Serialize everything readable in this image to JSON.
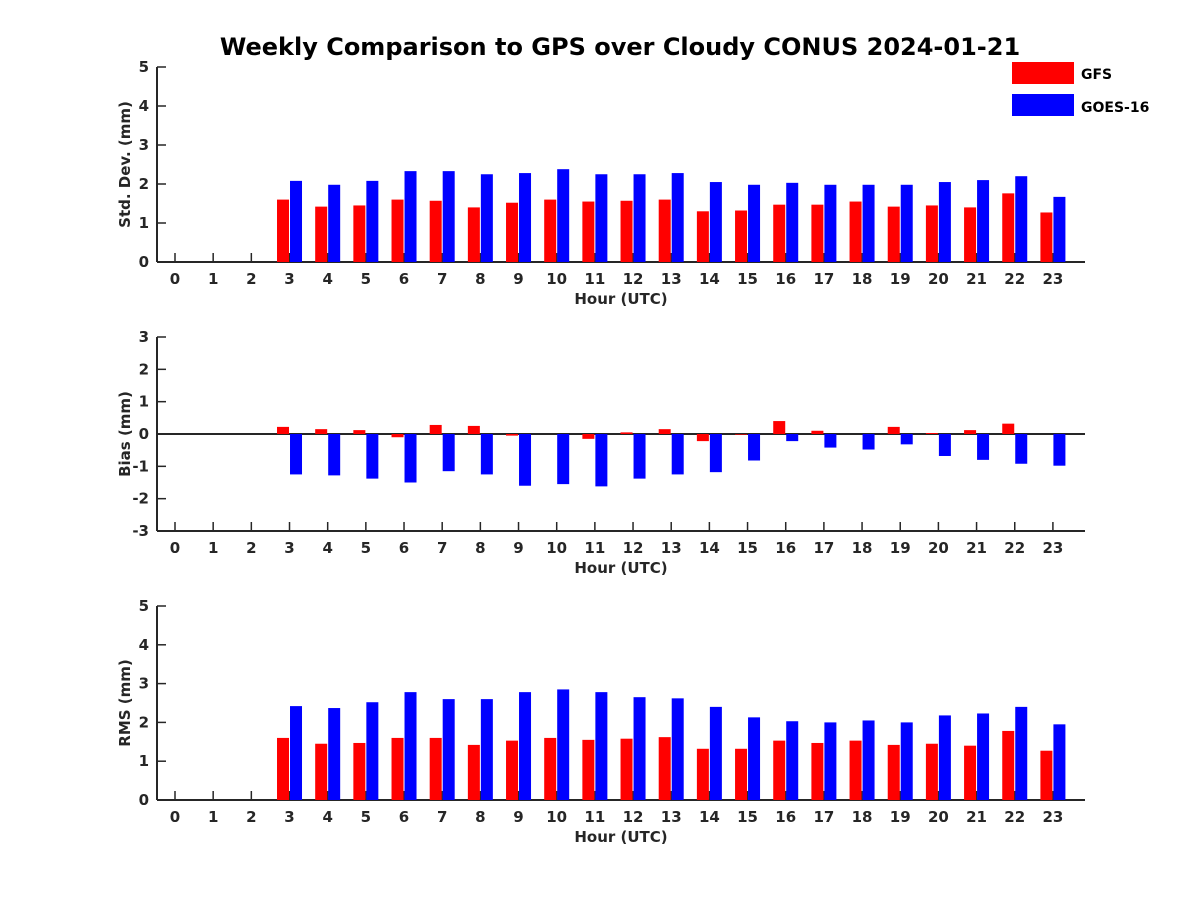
{
  "figure": {
    "title": "Weekly Comparison to GPS over Cloudy CONUS 2024-01-21"
  },
  "legend": {
    "placement": "top-right",
    "entries": [
      {
        "label": "GFS",
        "color": "#ff0000"
      },
      {
        "label": "GOES-16",
        "color": "#0000ff"
      }
    ]
  },
  "chart_data": [
    {
      "type": "bar",
      "xlabel": "Hour (UTC)",
      "ylabel": "Std. Dev. (mm)",
      "ylim": [
        0,
        5
      ],
      "yticks": [
        0,
        1,
        2,
        3,
        4,
        5
      ],
      "categories": [
        "0",
        "1",
        "2",
        "3",
        "4",
        "5",
        "6",
        "7",
        "8",
        "9",
        "10",
        "11",
        "12",
        "13",
        "14",
        "15",
        "16",
        "17",
        "18",
        "19",
        "20",
        "21",
        "22",
        "23"
      ],
      "series": [
        {
          "name": "GFS",
          "color": "#ff0000",
          "values": [
            null,
            null,
            null,
            1.6,
            1.42,
            1.45,
            1.6,
            1.57,
            1.4,
            1.52,
            1.6,
            1.55,
            1.57,
            1.6,
            1.3,
            1.32,
            1.47,
            1.47,
            1.55,
            1.42,
            1.45,
            1.4,
            1.76,
            1.27
          ]
        },
        {
          "name": "GOES-16",
          "color": "#0000ff",
          "values": [
            null,
            null,
            null,
            2.08,
            1.98,
            2.08,
            2.33,
            2.33,
            2.25,
            2.28,
            2.38,
            2.25,
            2.25,
            2.28,
            2.05,
            1.98,
            2.03,
            1.98,
            1.98,
            1.98,
            2.05,
            2.1,
            2.2,
            1.67
          ]
        }
      ]
    },
    {
      "type": "bar",
      "xlabel": "Hour (UTC)",
      "ylabel": "Bias (mm)",
      "ylim": [
        -3,
        3
      ],
      "yticks": [
        -3,
        -2,
        -1,
        0,
        1,
        2,
        3
      ],
      "categories": [
        "0",
        "1",
        "2",
        "3",
        "4",
        "5",
        "6",
        "7",
        "8",
        "9",
        "10",
        "11",
        "12",
        "13",
        "14",
        "15",
        "16",
        "17",
        "18",
        "19",
        "20",
        "21",
        "22",
        "23"
      ],
      "series": [
        {
          "name": "GFS",
          "color": "#ff0000",
          "values": [
            null,
            null,
            null,
            0.22,
            0.15,
            0.12,
            -0.1,
            0.28,
            0.25,
            -0.05,
            0.0,
            -0.15,
            0.05,
            0.15,
            -0.22,
            -0.02,
            0.4,
            0.1,
            0.0,
            0.22,
            0.03,
            0.12,
            0.32,
            0.0
          ]
        },
        {
          "name": "GOES-16",
          "color": "#0000ff",
          "values": [
            null,
            null,
            null,
            -1.25,
            -1.28,
            -1.38,
            -1.5,
            -1.15,
            -1.25,
            -1.6,
            -1.55,
            -1.62,
            -1.38,
            -1.25,
            -1.18,
            -0.82,
            -0.22,
            -0.42,
            -0.48,
            -0.32,
            -0.68,
            -0.8,
            -0.92,
            -0.98
          ]
        }
      ]
    },
    {
      "type": "bar",
      "xlabel": "Hour (UTC)",
      "ylabel": "RMS (mm)",
      "ylim": [
        0,
        5
      ],
      "yticks": [
        0,
        1,
        2,
        3,
        4,
        5
      ],
      "categories": [
        "0",
        "1",
        "2",
        "3",
        "4",
        "5",
        "6",
        "7",
        "8",
        "9",
        "10",
        "11",
        "12",
        "13",
        "14",
        "15",
        "16",
        "17",
        "18",
        "19",
        "20",
        "21",
        "22",
        "23"
      ],
      "series": [
        {
          "name": "GFS",
          "color": "#ff0000",
          "values": [
            null,
            null,
            null,
            1.6,
            1.45,
            1.47,
            1.6,
            1.6,
            1.42,
            1.53,
            1.6,
            1.55,
            1.58,
            1.62,
            1.32,
            1.32,
            1.53,
            1.47,
            1.53,
            1.42,
            1.45,
            1.4,
            1.78,
            1.27
          ]
        },
        {
          "name": "GOES-16",
          "color": "#0000ff",
          "values": [
            null,
            null,
            null,
            2.42,
            2.37,
            2.52,
            2.78,
            2.6,
            2.6,
            2.78,
            2.85,
            2.78,
            2.65,
            2.62,
            2.4,
            2.13,
            2.03,
            2.0,
            2.05,
            2.0,
            2.18,
            2.23,
            2.4,
            1.95
          ]
        }
      ]
    }
  ]
}
